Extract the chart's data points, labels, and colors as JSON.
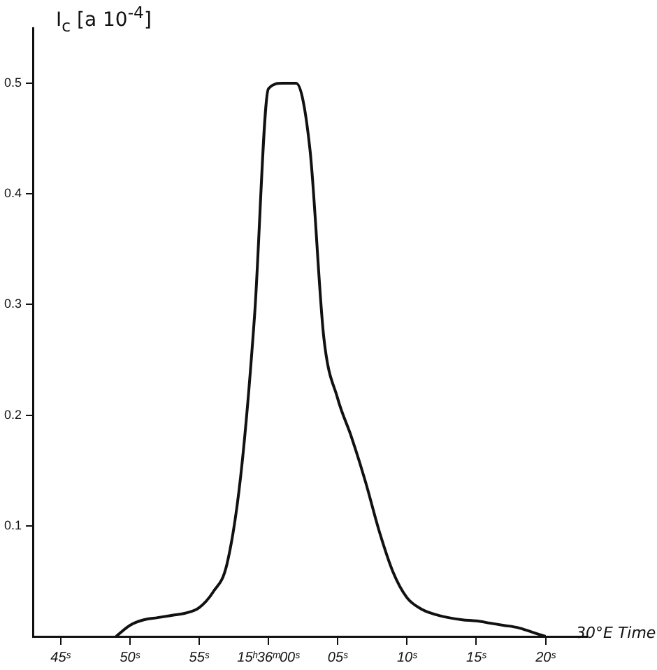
{
  "chart_data": {
    "type": "line",
    "xlabel": "30°E Time",
    "ylabel": "I$_{c}$ [a 10$^{-4}$]",
    "categories": [
      null,
      null,
      "45ˢ",
      null,
      null,
      null,
      null,
      "50ˢ",
      null,
      null,
      null,
      null,
      "55ˢ",
      null,
      null,
      null,
      null,
      "15ʰ36ᵐ00ˢ",
      null,
      null,
      null,
      null,
      "05ˢ",
      null,
      null,
      null,
      null,
      "10ˢ",
      null,
      null,
      null,
      null,
      "15ˢ",
      null,
      null,
      null,
      null,
      "20ˢ",
      null,
      null,
      null
    ],
    "series": [
      {
        "color": "#111111",
        "values": [
          null,
          null,
          null,
          null,
          null,
          null,
          0,
          0.01,
          0.015,
          0.017,
          0.019,
          0.021,
          0.026,
          0.04,
          0.065,
          0.145,
          0.29,
          0.495,
          0.5,
          0.5,
          0.44,
          0.27,
          0.215,
          0.18,
          0.14,
          0.095,
          0.058,
          0.035,
          0.025,
          0.02,
          0.017,
          0.015,
          0.014,
          0.012,
          0.01,
          0.008,
          0.004,
          0,
          null,
          null,
          null
        ]
      }
    ],
    "ylim": [
      0,
      0.55
    ],
    "yticks": [
      0.1,
      0.2,
      0.3,
      0.4,
      0.5
    ],
    "grid": false,
    "legend": false,
    "marker": "none",
    "line_style": "solid"
  }
}
